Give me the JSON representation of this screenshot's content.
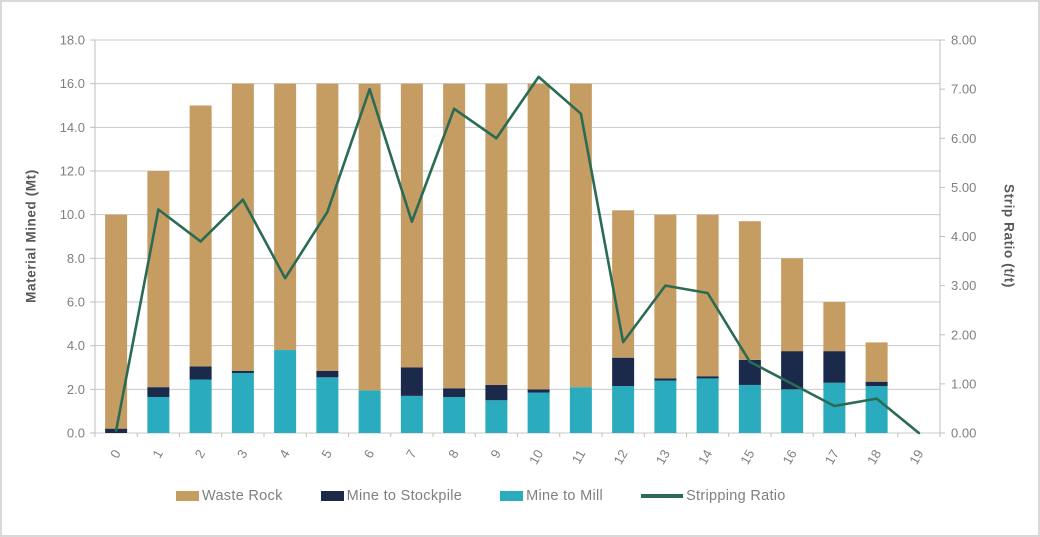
{
  "figure": {
    "left_axis_title": "Material Mined (Mt)",
    "right_axis_title": "Strip Ratio (t/t)"
  },
  "legend": {
    "items": [
      {
        "label": "Waste Rock",
        "color": "#c59d63",
        "swatch": "box"
      },
      {
        "label": "Mine to Stockpile",
        "color": "#1b2a4b",
        "swatch": "box"
      },
      {
        "label": "Mine to Mill",
        "color": "#2aacbe",
        "swatch": "box"
      },
      {
        "label": "Stripping Ratio",
        "color": "#2b6b53",
        "swatch": "line"
      }
    ]
  },
  "chart_data": {
    "type": "combo: stacked-bar + line",
    "title": "",
    "categories": [
      "0",
      "1",
      "2",
      "3",
      "4",
      "5",
      "6",
      "7",
      "8",
      "9",
      "10",
      "11",
      "12",
      "13",
      "14",
      "15",
      "16",
      "17",
      "18",
      "19"
    ],
    "series": [
      {
        "name": "Waste Rock",
        "type": "bar",
        "axis": "left",
        "color": "#c59d63",
        "values": [
          9.8,
          9.9,
          11.95,
          13.15,
          12.2,
          13.15,
          14.05,
          13.0,
          13.95,
          13.8,
          14.0,
          13.9,
          6.75,
          7.5,
          7.4,
          6.35,
          4.25,
          2.25,
          1.8,
          0
        ]
      },
      {
        "name": "Mine to Stockpile",
        "type": "bar",
        "axis": "left",
        "color": "#1b2a4b",
        "values": [
          0.2,
          0.45,
          0.6,
          0.1,
          0,
          0.3,
          0,
          1.3,
          0.4,
          0.7,
          0.15,
          0,
          1.3,
          0.1,
          0.1,
          1.15,
          1.75,
          1.45,
          0.2,
          0
        ]
      },
      {
        "name": "Mine to Mill",
        "type": "bar",
        "axis": "left",
        "color": "#2aacbe",
        "values": [
          0,
          1.65,
          2.45,
          2.75,
          3.8,
          2.55,
          1.95,
          1.7,
          1.65,
          1.5,
          1.85,
          2.1,
          2.15,
          2.4,
          2.5,
          2.2,
          2.0,
          2.3,
          2.15,
          0
        ]
      },
      {
        "name": "Stripping Ratio",
        "type": "line",
        "axis": "right",
        "color": "#2b6b53",
        "values": [
          0.05,
          4.55,
          3.9,
          4.75,
          3.15,
          4.5,
          7.0,
          4.3,
          6.6,
          6.0,
          7.25,
          6.5,
          1.85,
          3.0,
          2.85,
          1.45,
          1.0,
          0.55,
          0.7,
          0
        ]
      }
    ],
    "stack_order_bottom_to_top": [
      "Mine to Mill",
      "Mine to Stockpile",
      "Waste Rock"
    ],
    "left_axis": {
      "title": "Material Mined (Mt)",
      "min": 0,
      "max": 18,
      "step": 2,
      "tick_labels": [
        "0.0",
        "2.0",
        "4.0",
        "6.0",
        "8.0",
        "10.0",
        "12.0",
        "14.0",
        "16.0",
        "18.0"
      ]
    },
    "right_axis": {
      "title": "Strip Ratio (t/t)",
      "min": 0,
      "max": 8,
      "step": 1,
      "tick_labels": [
        "0.00",
        "1.00",
        "2.00",
        "3.00",
        "4.00",
        "5.00",
        "6.00",
        "7.00",
        "8.00"
      ]
    },
    "xlabel": "",
    "ylabel": "Material Mined (Mt)",
    "y2label": "Strip Ratio (t/t)",
    "grid": "horizontal",
    "legend_position": "bottom",
    "x_tick_label_rotation_deg": -60,
    "colors": {
      "gridline": "#c9c9c9",
      "axis_line": "#bfbfbf",
      "tick_text": "#7f7f7f"
    }
  }
}
